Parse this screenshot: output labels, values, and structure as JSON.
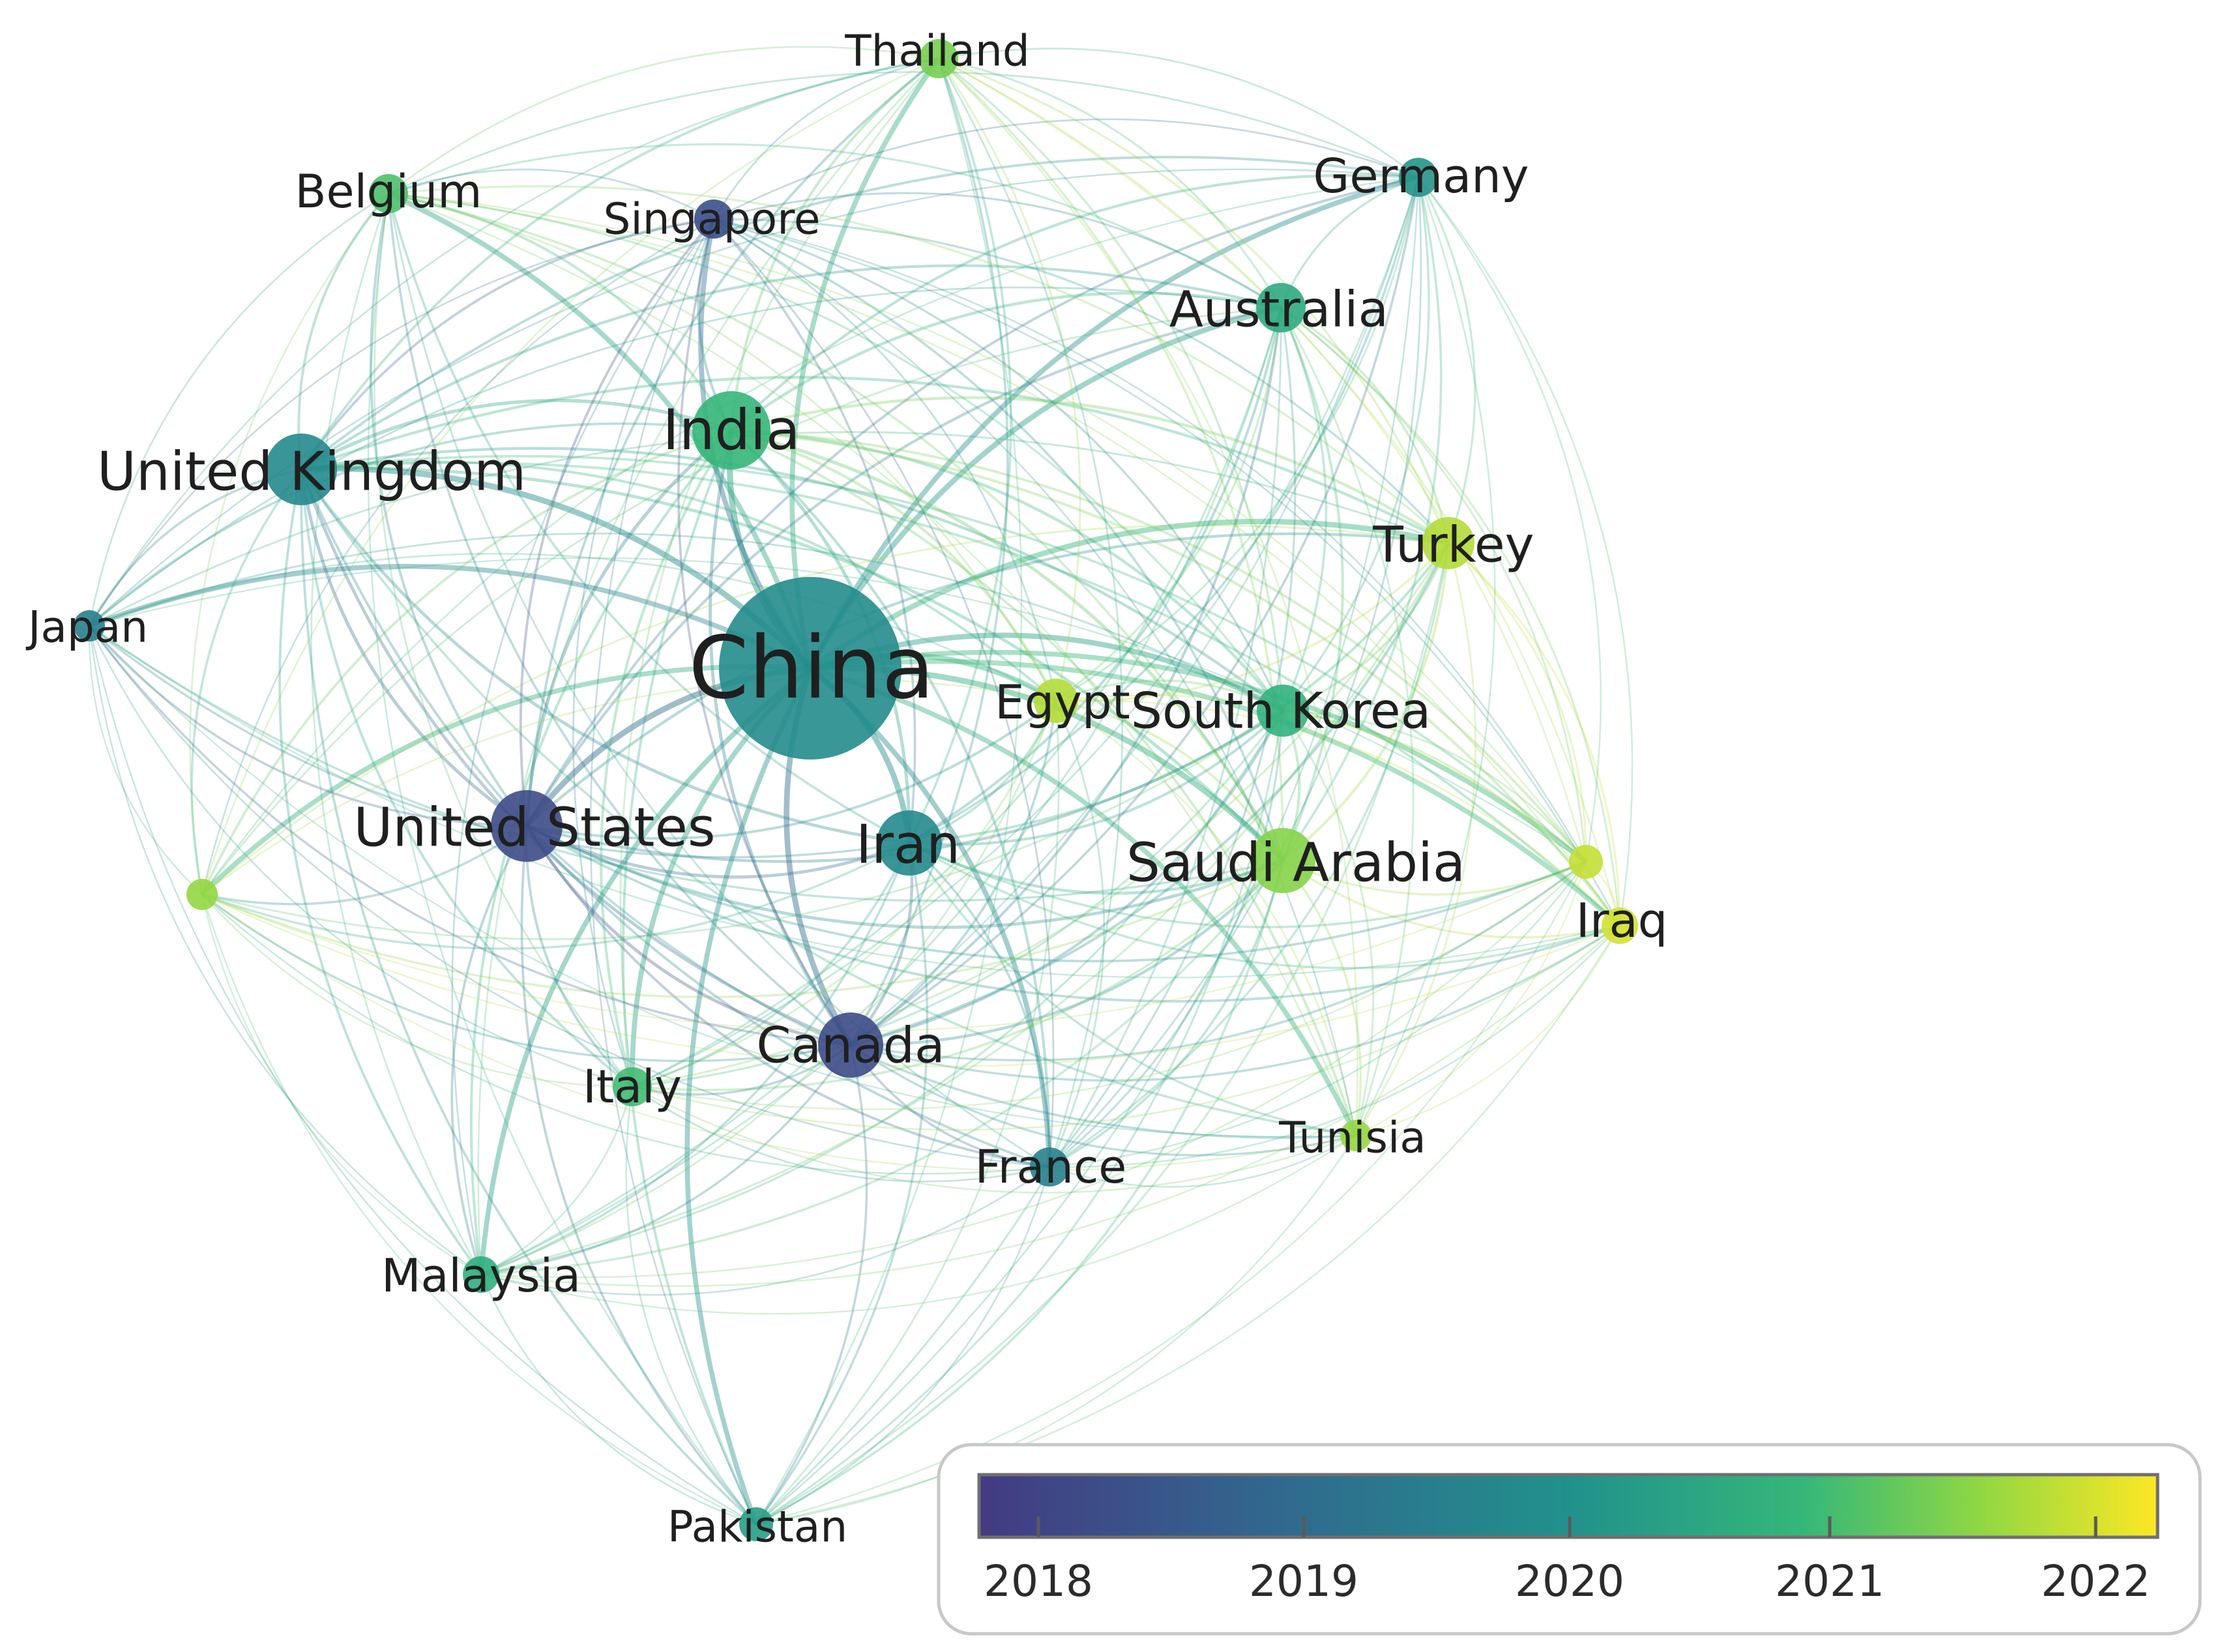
{
  "nodes": [
    {
      "id": "china",
      "label": "China",
      "year": 2019.9
    },
    {
      "id": "united-kingdom",
      "label": "United Kingdom",
      "year": 2019.8
    },
    {
      "id": "united-states",
      "label": "United States",
      "year": 2018.2
    },
    {
      "id": "india",
      "label": "India",
      "year": 2020.9
    },
    {
      "id": "saudi-arabia",
      "label": "Saudi Arabia",
      "year": 2021.5
    },
    {
      "id": "iran",
      "label": "Iran",
      "year": 2019.8
    },
    {
      "id": "canada",
      "label": "Canada",
      "year": 2018.2
    },
    {
      "id": "south-korea",
      "label": "South Korea",
      "year": 2020.8
    },
    {
      "id": "egypt",
      "label": "Egypt",
      "year": 2021.8
    },
    {
      "id": "turkey",
      "label": "Turkey",
      "year": 2021.8
    },
    {
      "id": "australia",
      "label": "Australia",
      "year": 2020.6
    },
    {
      "id": "germany",
      "label": "Germany",
      "year": 2020.1
    },
    {
      "id": "thailand",
      "label": "Thailand",
      "year": 2021.4
    },
    {
      "id": "singapore",
      "label": "Singapore",
      "year": 2018.3
    },
    {
      "id": "belgium",
      "label": "Belgium",
      "year": 2021.1
    },
    {
      "id": "japan",
      "label": "Japan",
      "year": 2019.5
    },
    {
      "id": "italy",
      "label": "Italy",
      "year": 2021.0
    },
    {
      "id": "france",
      "label": "France",
      "year": 2019.6
    },
    {
      "id": "tunisia",
      "label": "Tunisia",
      "year": 2021.6
    },
    {
      "id": "malaysia",
      "label": "Malaysia",
      "year": 2020.7
    },
    {
      "id": "pakistan",
      "label": "Pakistan",
      "year": 2020.3
    },
    {
      "id": "iraq",
      "label": "Iraq",
      "year": 2022.0
    },
    {
      "id": "unlabeled-node-a",
      "label": "",
      "year": 2021.6
    },
    {
      "id": "unlabeled-node-b",
      "label": "",
      "year": 2021.9
    }
  ],
  "legend": {
    "ticks": [
      "2018",
      "2019",
      "2020",
      "2021",
      "2022"
    ],
    "colors": [
      "#443a83",
      "#31688e",
      "#21918c",
      "#35b779",
      "#90d743",
      "#fde725"
    ]
  }
}
